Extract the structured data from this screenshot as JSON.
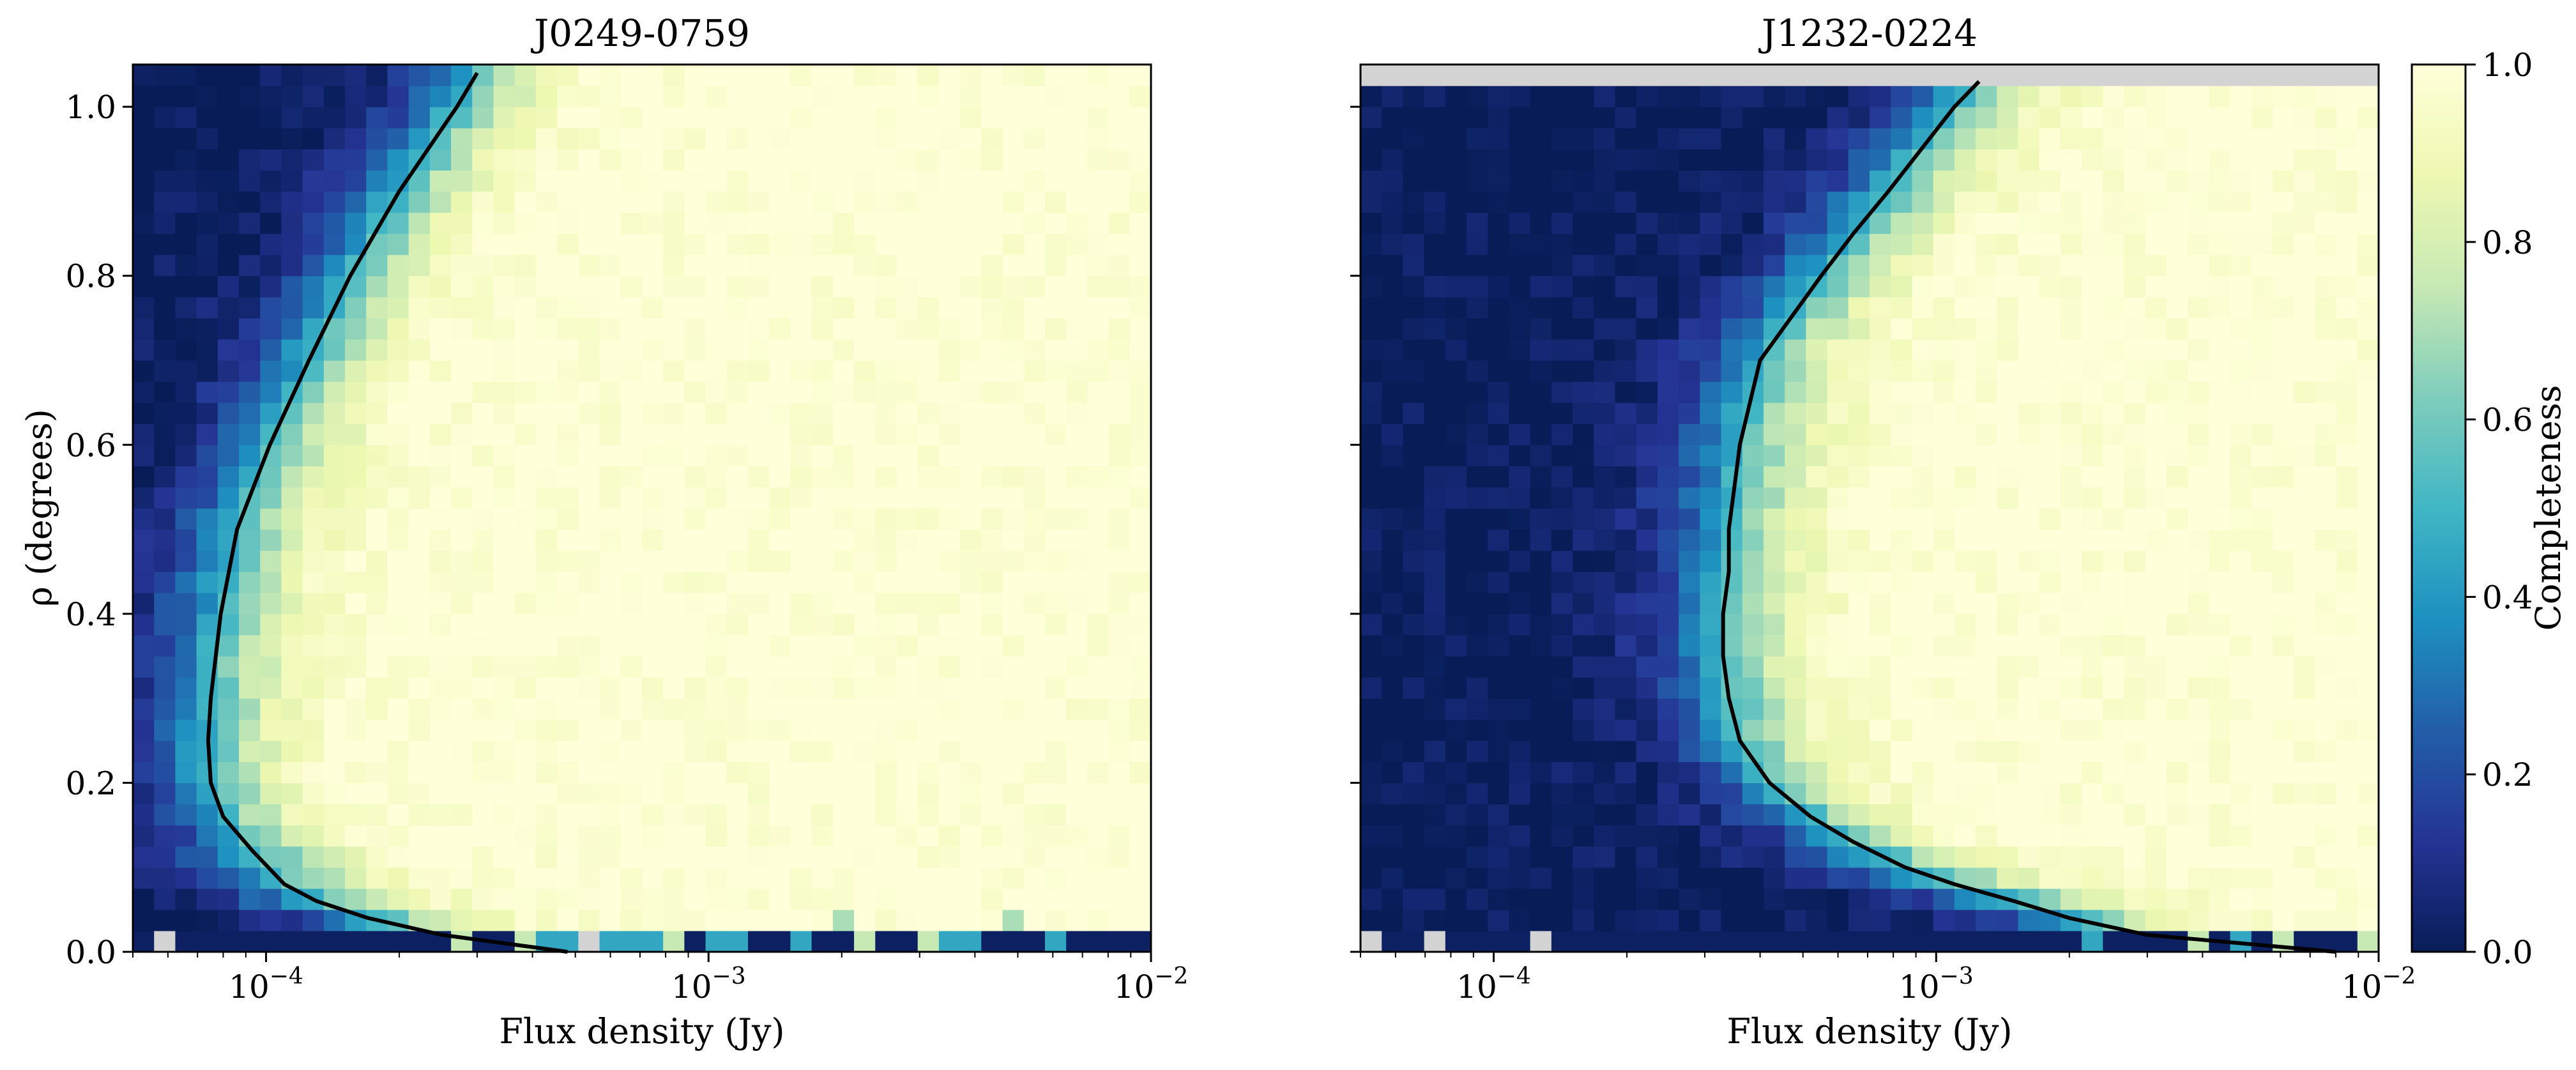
{
  "figure": {
    "panels": [
      {
        "title": "J0249-0759",
        "xlabel": "Flux density (Jy)",
        "ylabel": "ρ (degrees)",
        "show_ylabel": true,
        "show_yticklabels": true
      },
      {
        "title": "J1232-0224",
        "xlabel": "Flux density (Jy)",
        "ylabel": "",
        "show_ylabel": false,
        "show_yticklabels": false
      }
    ],
    "colorbar": {
      "label": "Completeness",
      "ticks": [
        "0.0",
        "0.2",
        "0.4",
        "0.6",
        "0.8",
        "1.0"
      ]
    }
  },
  "chart_data": [
    {
      "type": "heatmap",
      "title": "J0249-0759",
      "xlabel": "Flux density (Jy)",
      "ylabel": "ρ (degrees)",
      "xscale": "log",
      "xlim": [
        5e-05,
        0.01
      ],
      "ylim": [
        0.0,
        1.05
      ],
      "xticks": [
        0.0001,
        0.001,
        0.01
      ],
      "xticklabels": [
        "10^-4",
        "10^-3",
        "10^-2"
      ],
      "yticks": [
        0.0,
        0.2,
        0.4,
        0.6,
        0.8,
        1.0
      ],
      "yticklabels": [
        "0.0",
        "0.2",
        "0.4",
        "0.6",
        "0.8",
        "1.0"
      ],
      "value_range": [
        0.0,
        1.0
      ],
      "colormap": "YlGnBu",
      "grid": false,
      "n_bins_x": 48,
      "n_bins_y": 42,
      "completeness_50_curve": {
        "rho": [
          0.0,
          0.02,
          0.04,
          0.06,
          0.08,
          0.12,
          0.16,
          0.2,
          0.25,
          0.3,
          0.4,
          0.5,
          0.6,
          0.7,
          0.8,
          0.9,
          1.0,
          1.04
        ],
        "flux_jy": [
          0.00048,
          0.00025,
          0.00017,
          0.00013,
          0.00011,
          9.3e-05,
          8e-05,
          7.5e-05,
          7.4e-05,
          7.5e-05,
          7.9e-05,
          8.6e-05,
          0.000102,
          0.000125,
          0.000155,
          0.0002,
          0.00027,
          0.0003
        ]
      }
    },
    {
      "type": "heatmap",
      "title": "J1232-0224",
      "xlabel": "Flux density (Jy)",
      "ylabel": "",
      "xscale": "log",
      "xlim": [
        5e-05,
        0.01
      ],
      "ylim": [
        0.0,
        1.05
      ],
      "xticks": [
        0.0001,
        0.001,
        0.01
      ],
      "xticklabels": [
        "10^-4",
        "10^-3",
        "10^-2"
      ],
      "yticks": [
        0.0,
        0.2,
        0.4,
        0.6,
        0.8,
        1.0
      ],
      "value_range": [
        0.0,
        1.0
      ],
      "colormap": "YlGnBu",
      "grid": false,
      "n_bins_x": 48,
      "n_bins_y": 42,
      "completeness_50_curve": {
        "rho": [
          0.0,
          0.02,
          0.04,
          0.06,
          0.08,
          0.1,
          0.13,
          0.16,
          0.2,
          0.25,
          0.3,
          0.35,
          0.4,
          0.45,
          0.5,
          0.55,
          0.6,
          0.7,
          0.8,
          0.85,
          0.9,
          1.0,
          1.03
        ],
        "flux_jy": [
          0.008,
          0.003,
          0.002,
          0.0015,
          0.0011,
          0.00085,
          0.00065,
          0.00052,
          0.00042,
          0.00036,
          0.00034,
          0.00033,
          0.00033,
          0.00034,
          0.00034,
          0.00035,
          0.00036,
          0.0004,
          0.00055,
          0.00065,
          0.00078,
          0.0011,
          0.00125
        ]
      }
    }
  ]
}
